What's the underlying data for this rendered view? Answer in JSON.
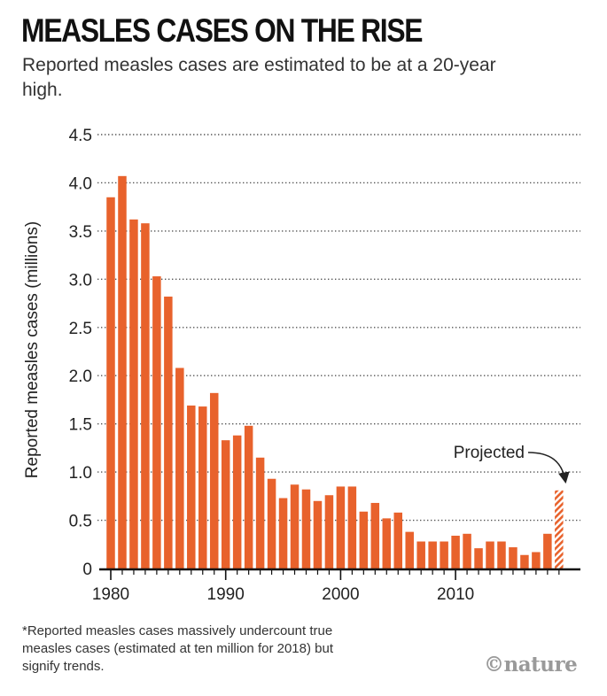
{
  "title": "MEASLES CASES ON THE RISE",
  "subtitle": "Reported measles cases are estimated to be at a 20-year high.",
  "footnote": "*Reported measles cases massively undercount true measles cases (estimated at ten million for 2018) but signify trends.",
  "logo_text": "©nature",
  "colors": {
    "bar": "#e8622c",
    "projected_hatch": "#e8622c",
    "axis": "#111111",
    "grid": "#555555"
  },
  "chart_data": {
    "type": "bar",
    "title": "MEASLES CASES ON THE RISE",
    "subtitle": "Reported measles cases are estimated to be at a 20-year high.",
    "xlabel": "",
    "ylabel": "Reported measles cases (millions)",
    "ylim": [
      0,
      4.5
    ],
    "yticks": [
      0,
      0.5,
      1.0,
      1.5,
      2.0,
      2.5,
      3.0,
      3.5,
      4.0,
      4.5
    ],
    "ytick_labels": [
      "0",
      "0.5",
      "1.0",
      "1.5",
      "2.0",
      "2.5",
      "3.0",
      "3.5",
      "4.0",
      "4.5"
    ],
    "xticks": [
      1980,
      1990,
      2000,
      2010
    ],
    "xtick_labels": [
      "1980",
      "1990",
      "2000",
      "2010"
    ],
    "grid": "horizontal dotted",
    "x": [
      1980,
      1981,
      1982,
      1983,
      1984,
      1985,
      1986,
      1987,
      1988,
      1989,
      1990,
      1991,
      1992,
      1993,
      1994,
      1995,
      1996,
      1997,
      1998,
      1999,
      2000,
      2001,
      2002,
      2003,
      2004,
      2005,
      2006,
      2007,
      2008,
      2009,
      2010,
      2011,
      2012,
      2013,
      2014,
      2015,
      2016,
      2017,
      2018
    ],
    "values": [
      3.85,
      4.07,
      3.62,
      3.58,
      3.03,
      2.82,
      2.08,
      1.69,
      1.68,
      1.82,
      1.33,
      1.38,
      1.48,
      1.15,
      0.93,
      0.73,
      0.87,
      0.82,
      0.7,
      0.76,
      0.85,
      0.85,
      0.59,
      0.68,
      0.52,
      0.58,
      0.38,
      0.28,
      0.28,
      0.28,
      0.34,
      0.36,
      0.21,
      0.28,
      0.28,
      0.22,
      0.14,
      0.17,
      0.36
    ],
    "projected": {
      "x": 2019,
      "value": 0.81,
      "label": "Projected"
    }
  }
}
